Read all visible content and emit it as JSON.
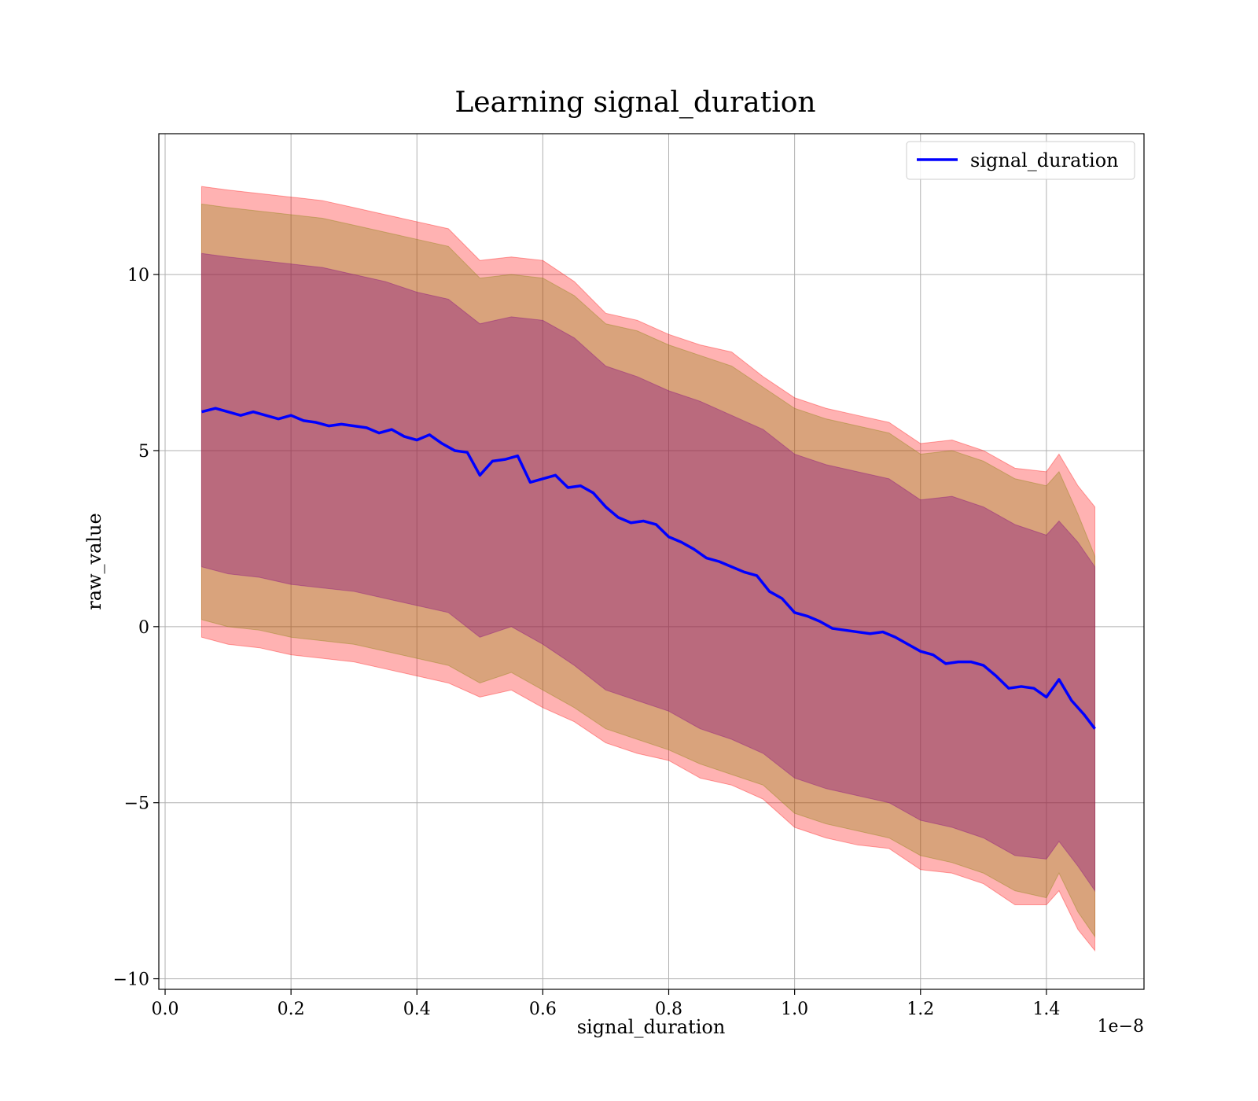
{
  "chart_data": {
    "type": "line",
    "title": "Learning signal_duration",
    "xlabel": "signal_duration",
    "ylabel": "raw_value",
    "x_offset_text": "1e−8",
    "xlim": [
      -0.01,
      1.555
    ],
    "ylim": [
      -10.3,
      14.0
    ],
    "x_ticks": [
      0.0,
      0.2,
      0.4,
      0.6,
      0.8,
      1.0,
      1.2,
      1.4
    ],
    "x_tick_labels": [
      "0.0",
      "0.2",
      "0.4",
      "0.6",
      "0.8",
      "1.0",
      "1.2",
      "1.4"
    ],
    "y_ticks": [
      10,
      5,
      0,
      -5,
      -10
    ],
    "y_tick_labels": [
      "10",
      "5",
      "0",
      "−5",
      "−10"
    ],
    "grid": true,
    "legend": {
      "position": "top-right"
    },
    "colors": {
      "mean_line": "#0000ff",
      "outer_band": "#ff0000",
      "middle_band": "#808000",
      "inner_band": "#800080"
    },
    "series": [
      {
        "name": "signal_duration",
        "color": "#0000ff",
        "x": [
          0.058,
          0.08,
          0.1,
          0.12,
          0.14,
          0.16,
          0.18,
          0.2,
          0.22,
          0.24,
          0.26,
          0.28,
          0.3,
          0.32,
          0.34,
          0.36,
          0.38,
          0.4,
          0.42,
          0.44,
          0.46,
          0.48,
          0.5,
          0.52,
          0.54,
          0.56,
          0.58,
          0.6,
          0.62,
          0.64,
          0.66,
          0.68,
          0.7,
          0.72,
          0.74,
          0.76,
          0.78,
          0.8,
          0.82,
          0.84,
          0.86,
          0.88,
          0.9,
          0.92,
          0.94,
          0.96,
          0.98,
          1.0,
          1.02,
          1.04,
          1.06,
          1.08,
          1.1,
          1.12,
          1.14,
          1.16,
          1.18,
          1.2,
          1.22,
          1.24,
          1.26,
          1.28,
          1.3,
          1.32,
          1.34,
          1.36,
          1.38,
          1.4,
          1.42,
          1.44,
          1.46,
          1.477
        ],
        "y": [
          6.1,
          6.2,
          6.1,
          6.0,
          6.1,
          6.0,
          5.9,
          6.0,
          5.85,
          5.8,
          5.7,
          5.75,
          5.7,
          5.65,
          5.5,
          5.6,
          5.4,
          5.3,
          5.45,
          5.2,
          5.0,
          4.95,
          4.3,
          4.7,
          4.75,
          4.85,
          4.1,
          4.2,
          4.3,
          3.95,
          4.0,
          3.8,
          3.4,
          3.1,
          2.95,
          3.0,
          2.9,
          2.55,
          2.4,
          2.2,
          1.95,
          1.85,
          1.7,
          1.55,
          1.45,
          1.0,
          0.8,
          0.4,
          0.3,
          0.15,
          -0.05,
          -0.1,
          -0.15,
          -0.2,
          -0.15,
          -0.3,
          -0.5,
          -0.7,
          -0.8,
          -1.05,
          -1.0,
          -1.0,
          -1.1,
          -1.4,
          -1.75,
          -1.7,
          -1.75,
          -2.0,
          -1.5,
          -2.1,
          -2.5,
          -2.9
        ]
      }
    ],
    "bands": [
      {
        "role": "outer",
        "x": [
          0.058,
          0.1,
          0.15,
          0.2,
          0.25,
          0.3,
          0.35,
          0.4,
          0.45,
          0.5,
          0.55,
          0.6,
          0.65,
          0.7,
          0.75,
          0.8,
          0.85,
          0.9,
          0.95,
          1.0,
          1.05,
          1.1,
          1.15,
          1.2,
          1.25,
          1.3,
          1.35,
          1.4,
          1.42,
          1.45,
          1.477
        ],
        "upper": [
          12.5,
          12.4,
          12.3,
          12.2,
          12.1,
          11.9,
          11.7,
          11.5,
          11.3,
          10.4,
          10.5,
          10.4,
          9.8,
          8.9,
          8.7,
          8.3,
          8.0,
          7.8,
          7.1,
          6.5,
          6.2,
          6.0,
          5.8,
          5.2,
          5.3,
          5.0,
          4.5,
          4.4,
          4.9,
          4.0,
          3.4
        ],
        "lower": [
          -0.3,
          -0.5,
          -0.6,
          -0.8,
          -0.9,
          -1.0,
          -1.2,
          -1.4,
          -1.6,
          -2.0,
          -1.8,
          -2.3,
          -2.7,
          -3.3,
          -3.6,
          -3.8,
          -4.3,
          -4.5,
          -4.9,
          -5.7,
          -6.0,
          -6.2,
          -6.3,
          -6.9,
          -7.0,
          -7.3,
          -7.9,
          -7.9,
          -7.5,
          -8.6,
          -9.2
        ]
      },
      {
        "role": "middle",
        "x": [
          0.058,
          0.1,
          0.15,
          0.2,
          0.25,
          0.3,
          0.35,
          0.4,
          0.45,
          0.5,
          0.55,
          0.6,
          0.65,
          0.7,
          0.75,
          0.8,
          0.85,
          0.9,
          0.95,
          1.0,
          1.05,
          1.1,
          1.15,
          1.2,
          1.25,
          1.3,
          1.35,
          1.4,
          1.42,
          1.45,
          1.477
        ],
        "upper": [
          12.0,
          11.9,
          11.8,
          11.7,
          11.6,
          11.4,
          11.2,
          11.0,
          10.8,
          9.9,
          10.0,
          9.9,
          9.4,
          8.6,
          8.4,
          8.0,
          7.7,
          7.4,
          6.8,
          6.2,
          5.9,
          5.7,
          5.5,
          4.9,
          5.0,
          4.7,
          4.2,
          4.0,
          4.4,
          3.2,
          2.0
        ],
        "lower": [
          0.2,
          0.0,
          -0.1,
          -0.3,
          -0.4,
          -0.5,
          -0.7,
          -0.9,
          -1.1,
          -1.6,
          -1.3,
          -1.8,
          -2.3,
          -2.9,
          -3.2,
          -3.5,
          -3.9,
          -4.2,
          -4.5,
          -5.3,
          -5.6,
          -5.8,
          -6.0,
          -6.5,
          -6.7,
          -7.0,
          -7.5,
          -7.7,
          -7.0,
          -8.1,
          -8.8
        ]
      },
      {
        "role": "inner",
        "x": [
          0.058,
          0.1,
          0.15,
          0.2,
          0.25,
          0.3,
          0.35,
          0.4,
          0.45,
          0.5,
          0.55,
          0.6,
          0.65,
          0.7,
          0.75,
          0.8,
          0.85,
          0.9,
          0.95,
          1.0,
          1.05,
          1.1,
          1.15,
          1.2,
          1.25,
          1.3,
          1.35,
          1.4,
          1.42,
          1.45,
          1.477
        ],
        "upper": [
          10.6,
          10.5,
          10.4,
          10.3,
          10.2,
          10.0,
          9.8,
          9.5,
          9.3,
          8.6,
          8.8,
          8.7,
          8.2,
          7.4,
          7.1,
          6.7,
          6.4,
          6.0,
          5.6,
          4.9,
          4.6,
          4.4,
          4.2,
          3.6,
          3.7,
          3.4,
          2.9,
          2.6,
          3.0,
          2.4,
          1.7
        ],
        "lower": [
          1.7,
          1.5,
          1.4,
          1.2,
          1.1,
          1.0,
          0.8,
          0.6,
          0.4,
          -0.3,
          0.0,
          -0.5,
          -1.1,
          -1.8,
          -2.1,
          -2.4,
          -2.9,
          -3.2,
          -3.6,
          -4.3,
          -4.6,
          -4.8,
          -5.0,
          -5.5,
          -5.7,
          -6.0,
          -6.5,
          -6.6,
          -6.1,
          -6.8,
          -7.5
        ]
      }
    ]
  }
}
